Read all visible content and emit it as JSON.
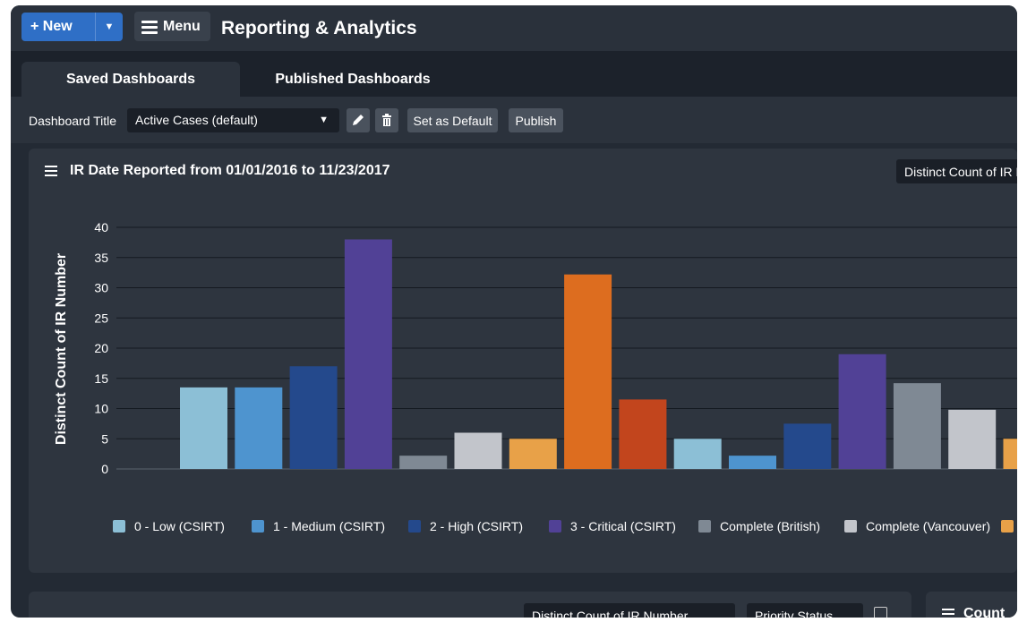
{
  "header": {
    "new_label": "+ New",
    "new_caret": "▼",
    "menu_label": "Menu",
    "title": "Reporting & Analytics"
  },
  "tabs": [
    {
      "label": "Saved Dashboards",
      "active": true
    },
    {
      "label": "Published Dashboards",
      "active": false
    }
  ],
  "toolbar": {
    "title_label": "Dashboard Title",
    "select_value": "Active Cases (default)",
    "edit_icon": "pencil-icon",
    "delete_icon": "trash-icon",
    "set_default_label": "Set as Default",
    "publish_label": "Publish"
  },
  "panel": {
    "title": "IR Date Reported from 01/01/2016 to 11/23/2017",
    "measure_select": "Distinct Count of IR Number"
  },
  "chart_data": {
    "type": "bar",
    "ylabel": "Distinct Count of IR Number",
    "ylim": [
      0,
      40
    ],
    "yticks": [
      0,
      5,
      10,
      15,
      20,
      25,
      30,
      35,
      40
    ],
    "grid": true,
    "legend_position": "bottom",
    "series": [
      {
        "name": "0 - Low (CSIRT)",
        "color": "#8cbfd6"
      },
      {
        "name": "1 - Medium (CSIRT)",
        "color": "#4e94cf"
      },
      {
        "name": "2 - High (CSIRT)",
        "color": "#24498c"
      },
      {
        "name": "3 - Critical (CSIRT)",
        "color": "#514196"
      },
      {
        "name": "Complete (British)",
        "color": "#7f8994"
      },
      {
        "name": "Complete (Vancouver)",
        "color": "#c2c5cb"
      },
      {
        "name": "",
        "color": "#e8a148"
      }
    ],
    "bars": [
      {
        "series": 0,
        "value": 13.5
      },
      {
        "series": 1,
        "value": 13.5
      },
      {
        "series": 2,
        "value": 17
      },
      {
        "series": 3,
        "value": 38
      },
      {
        "series": 4,
        "value": 2.2
      },
      {
        "series": 5,
        "value": 6
      },
      {
        "series": 6,
        "value": 5
      },
      {
        "series": -1,
        "value": 32.2,
        "color": "#dd6d1f"
      },
      {
        "series": -1,
        "value": 11.5,
        "color": "#c2451d"
      },
      {
        "series": 0,
        "value": 5
      },
      {
        "series": 1,
        "value": 2.2
      },
      {
        "series": 2,
        "value": 7.5
      },
      {
        "series": 3,
        "value": 19
      },
      {
        "series": 4,
        "value": 14.2
      },
      {
        "series": 5,
        "value": 9.8
      },
      {
        "series": 6,
        "value": 5
      }
    ]
  },
  "bottom": {
    "measure_select": "Distinct Count of IR Number",
    "group_select": "Priority Status",
    "panel2_title": "Count"
  }
}
